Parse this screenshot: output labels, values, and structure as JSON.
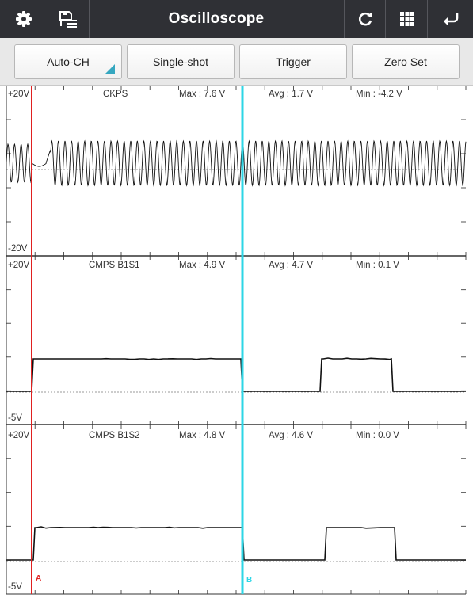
{
  "app": {
    "title": "Oscilloscope"
  },
  "toolbar": {
    "auto_ch_label": "Auto-CH",
    "single_shot_label": "Single-shot",
    "trigger_label": "Trigger",
    "zero_set_label": "Zero Set"
  },
  "cursors": {
    "a_label": "A",
    "b_label": "B",
    "a_color": "#e02020",
    "b_color": "#2dd6e6"
  },
  "channels": [
    {
      "name": "CKPS",
      "max": "Max : 7.6 V",
      "avg": "Avg : 1.7 V",
      "min": "Min : -4.2 V",
      "top_label": "+20V",
      "bottom_label": "-20V"
    },
    {
      "name": "CMPS B1S1",
      "max": "Max : 4.9 V",
      "avg": "Avg : 4.7 V",
      "min": "Min : 0.1 V",
      "top_label": "+20V",
      "bottom_label": "-5V"
    },
    {
      "name": "CMPS B1S2",
      "max": "Max : 4.8 V",
      "avg": "Avg : 4.6 V",
      "min": "Min : 0.0 V",
      "top_label": "+20V",
      "bottom_label": "-5V"
    }
  ],
  "icons": {
    "settings": "gear-icon",
    "save": "save-list-icon",
    "refresh": "refresh-icon",
    "grid": "grid-icon",
    "back": "back-arrow-icon"
  }
}
